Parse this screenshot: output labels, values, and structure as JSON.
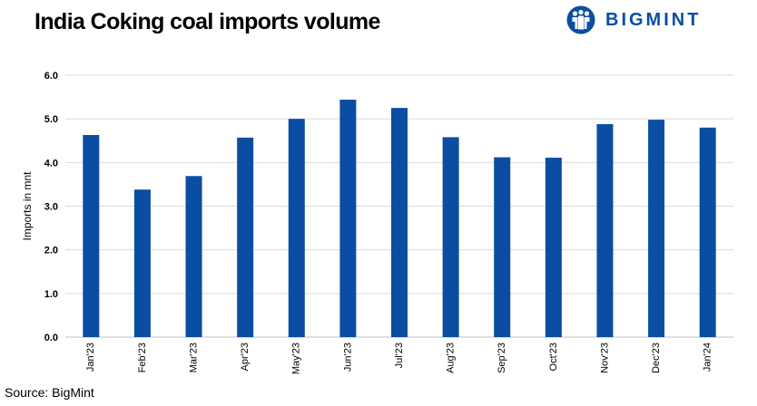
{
  "header": {
    "title": "India Coking coal imports volume",
    "brand_name": "BIGMINT",
    "brand_color": "#0B4DA2"
  },
  "footer": {
    "source": "Source: BigMint"
  },
  "chart_data": {
    "type": "bar",
    "title": "India Coking coal imports volume",
    "xlabel": "",
    "ylabel": "Imports in mnt",
    "ylim": [
      0,
      6
    ],
    "yticks": [
      "0.0",
      "1.0",
      "2.0",
      "3.0",
      "4.0",
      "5.0",
      "6.0"
    ],
    "grid": true,
    "legend": "none",
    "bar_color": "#0B4DA2",
    "categories": [
      "Jan'23",
      "Feb'23",
      "Mar'23",
      "Apr'23",
      "May'23",
      "Jun'23",
      "Jul'23",
      "Aug'23",
      "Sep'23",
      "Oct'23",
      "Nov'23",
      "Dec'23",
      "Jan'24"
    ],
    "values": [
      4.63,
      3.38,
      3.69,
      4.57,
      5.0,
      5.44,
      5.25,
      4.58,
      4.12,
      4.11,
      4.88,
      4.98,
      4.8
    ]
  }
}
